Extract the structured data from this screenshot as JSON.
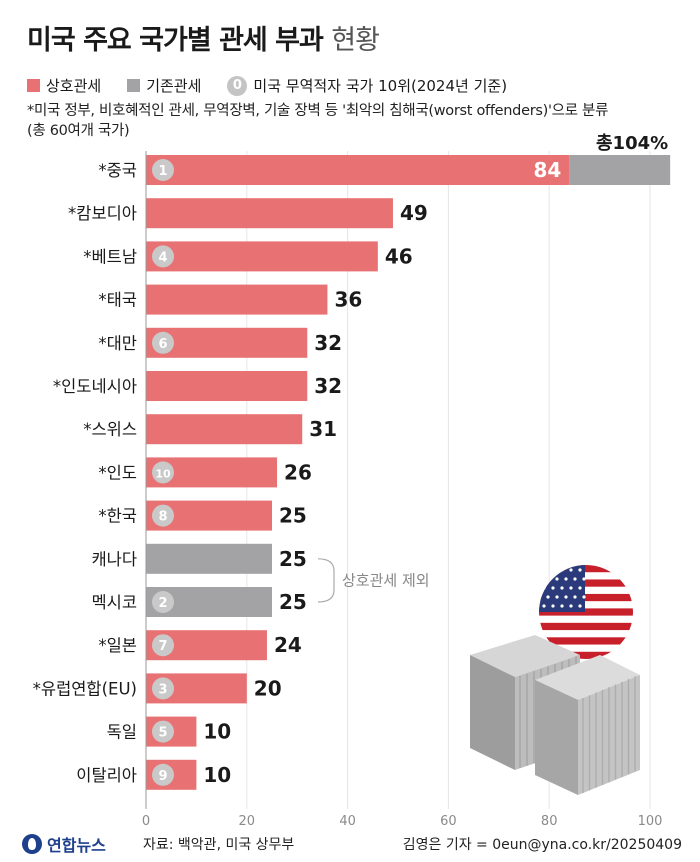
{
  "title": {
    "main": "미국 주요 국가별 관세 부과",
    "sub": "현황"
  },
  "legend": {
    "reciprocal": "상호관세",
    "existing": "기존관세",
    "rank_symbol": "0",
    "rank_label": "미국 무역적자 국가 10위(2024년 기준)"
  },
  "note": {
    "line1": "*미국 정부, 비호혜적인 관세, 무역장벽, 기술 장벽 등 '최악의 침해국(worst offenders)'으로 분류",
    "line2": "(총 60여개 국가)"
  },
  "colors": {
    "reciprocal": "#e87273",
    "existing": "#a3a3a6",
    "rank_circle": "#c9c9c9",
    "axis_text": "#8a8a8a",
    "grid": "#e6e6e6"
  },
  "chart_data": {
    "type": "bar",
    "orientation": "horizontal",
    "series": [
      {
        "name": "상호관세",
        "color": "#e87273"
      },
      {
        "name": "기존관세",
        "color": "#a3a3a6"
      }
    ],
    "rows": [
      {
        "label": "*중국",
        "value": 84,
        "value_label": "84",
        "total": 104,
        "total_label": "총104%",
        "rank": "1",
        "type": "reciprocal"
      },
      {
        "label": "*캄보디아",
        "value": 49,
        "value_label": "49",
        "rank": "",
        "type": "reciprocal"
      },
      {
        "label": "*베트남",
        "value": 46,
        "value_label": "46",
        "rank": "4",
        "type": "reciprocal"
      },
      {
        "label": "*태국",
        "value": 36,
        "value_label": "36",
        "rank": "",
        "type": "reciprocal"
      },
      {
        "label": "*대만",
        "value": 32,
        "value_label": "32",
        "rank": "6",
        "type": "reciprocal"
      },
      {
        "label": "*인도네시아",
        "value": 32,
        "value_label": "32",
        "rank": "",
        "type": "reciprocal"
      },
      {
        "label": "*스위스",
        "value": 31,
        "value_label": "31",
        "rank": "",
        "type": "reciprocal"
      },
      {
        "label": "*인도",
        "value": 26,
        "value_label": "26",
        "rank": "10",
        "type": "reciprocal"
      },
      {
        "label": "*한국",
        "value": 25,
        "value_label": "25",
        "rank": "8",
        "type": "reciprocal"
      },
      {
        "label": "캐나다",
        "value": 25,
        "value_label": "25",
        "rank": "",
        "type": "existing"
      },
      {
        "label": "멕시코",
        "value": 25,
        "value_label": "25",
        "rank": "2",
        "type": "existing"
      },
      {
        "label": "*일본",
        "value": 24,
        "value_label": "24",
        "rank": "7",
        "type": "reciprocal"
      },
      {
        "label": "*유럽연합(EU)",
        "value": 20,
        "value_label": "20",
        "rank": "3",
        "type": "reciprocal"
      },
      {
        "label": "독일",
        "value": 10,
        "value_label": "10",
        "rank": "5",
        "type": "reciprocal"
      },
      {
        "label": "이탈리아",
        "value": 10,
        "value_label": "10",
        "rank": "9",
        "type": "reciprocal"
      }
    ],
    "xlim": [
      0,
      104
    ],
    "xticks": [
      0,
      20,
      40,
      60,
      80,
      100
    ],
    "bracket_label": "상호관세 제외",
    "grid": true,
    "legend_position": "top-left"
  },
  "footer": {
    "logo": "연합뉴스",
    "source": "자료: 백악관, 미국 상무부",
    "credit": "김영은 기자 = 0eun@yna.co.kr/20250409"
  }
}
